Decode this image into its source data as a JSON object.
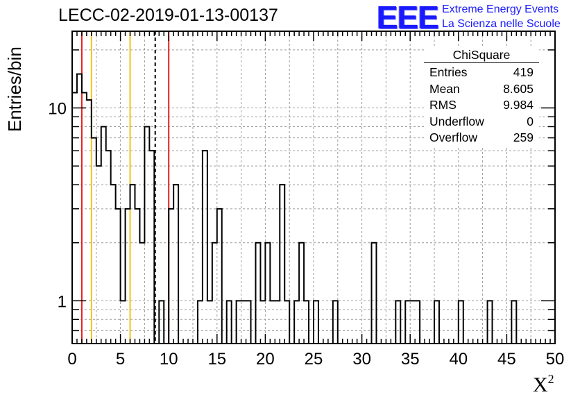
{
  "chart_data": {
    "type": "bar",
    "title": "LECC-02-2019-01-13-00137",
    "xlabel": "X",
    "xlabel_sup": "2",
    "ylabel": "Entries/bin",
    "xlim": [
      0,
      50
    ],
    "ylim": [
      0.6,
      25
    ],
    "yscale": "log",
    "grid": true,
    "bin_width": 0.5,
    "x_ticks": [
      "0",
      "5",
      "10",
      "15",
      "20",
      "25",
      "30",
      "35",
      "40",
      "45",
      "50"
    ],
    "y_ticks": [
      "1",
      "10"
    ],
    "bins": [
      {
        "x": 0.0,
        "y": 12
      },
      {
        "x": 0.5,
        "y": 15
      },
      {
        "x": 1.0,
        "y": 12
      },
      {
        "x": 1.5,
        "y": 11
      },
      {
        "x": 2.0,
        "y": 7
      },
      {
        "x": 2.5,
        "y": 5
      },
      {
        "x": 3.0,
        "y": 8
      },
      {
        "x": 3.5,
        "y": 6
      },
      {
        "x": 4.0,
        "y": 4
      },
      {
        "x": 4.5,
        "y": 3
      },
      {
        "x": 5.0,
        "y": 1
      },
      {
        "x": 5.5,
        "y": 3
      },
      {
        "x": 6.0,
        "y": 4
      },
      {
        "x": 6.5,
        "y": 3
      },
      {
        "x": 7.0,
        "y": 2
      },
      {
        "x": 7.5,
        "y": 8
      },
      {
        "x": 8.0,
        "y": 6
      },
      {
        "x": 9.0,
        "y": 1
      },
      {
        "x": 10.0,
        "y": 3
      },
      {
        "x": 10.5,
        "y": 4
      },
      {
        "x": 13.0,
        "y": 1
      },
      {
        "x": 13.5,
        "y": 6
      },
      {
        "x": 14.0,
        "y": 1
      },
      {
        "x": 14.5,
        "y": 2
      },
      {
        "x": 15.0,
        "y": 3
      },
      {
        "x": 16.0,
        "y": 1
      },
      {
        "x": 17.0,
        "y": 1
      },
      {
        "x": 17.5,
        "y": 1
      },
      {
        "x": 18.0,
        "y": 1
      },
      {
        "x": 19.0,
        "y": 2
      },
      {
        "x": 19.5,
        "y": 1
      },
      {
        "x": 20.0,
        "y": 2
      },
      {
        "x": 20.5,
        "y": 1
      },
      {
        "x": 21.0,
        "y": 1
      },
      {
        "x": 21.5,
        "y": 4
      },
      {
        "x": 22.0,
        "y": 1
      },
      {
        "x": 23.0,
        "y": 1
      },
      {
        "x": 23.5,
        "y": 2
      },
      {
        "x": 24.0,
        "y": 1
      },
      {
        "x": 25.0,
        "y": 1
      },
      {
        "x": 27.0,
        "y": 1
      },
      {
        "x": 31.0,
        "y": 2
      },
      {
        "x": 33.5,
        "y": 1
      },
      {
        "x": 34.5,
        "y": 1
      },
      {
        "x": 35.0,
        "y": 1
      },
      {
        "x": 35.5,
        "y": 1
      },
      {
        "x": 37.5,
        "y": 1
      },
      {
        "x": 40.0,
        "y": 1
      },
      {
        "x": 43.0,
        "y": 1
      },
      {
        "x": 45.5,
        "y": 1
      }
    ],
    "vertical_lines": [
      {
        "x": 1.0,
        "color": "#e8201c",
        "dashed": false
      },
      {
        "x": 2.0,
        "color": "#f2c21a",
        "dashed": false
      },
      {
        "x": 6.0,
        "color": "#f2c21a",
        "dashed": false
      },
      {
        "x": 8.6,
        "color": "#000000",
        "dashed": true
      },
      {
        "x": 10.0,
        "color": "#e8201c",
        "dashed": false
      }
    ],
    "stats": {
      "name": "ChiSquare",
      "rows": [
        {
          "label": "Entries",
          "value": "419"
        },
        {
          "label": "Mean",
          "value": "8.605"
        },
        {
          "label": "RMS",
          "value": "9.984"
        },
        {
          "label": "Underflow",
          "value": "0"
        },
        {
          "label": "Overflow",
          "value": "259"
        }
      ]
    }
  },
  "logo": {
    "mark": "EEE",
    "line1": "Extreme Energy Events",
    "line2": "La Scienza nelle Scuole"
  }
}
